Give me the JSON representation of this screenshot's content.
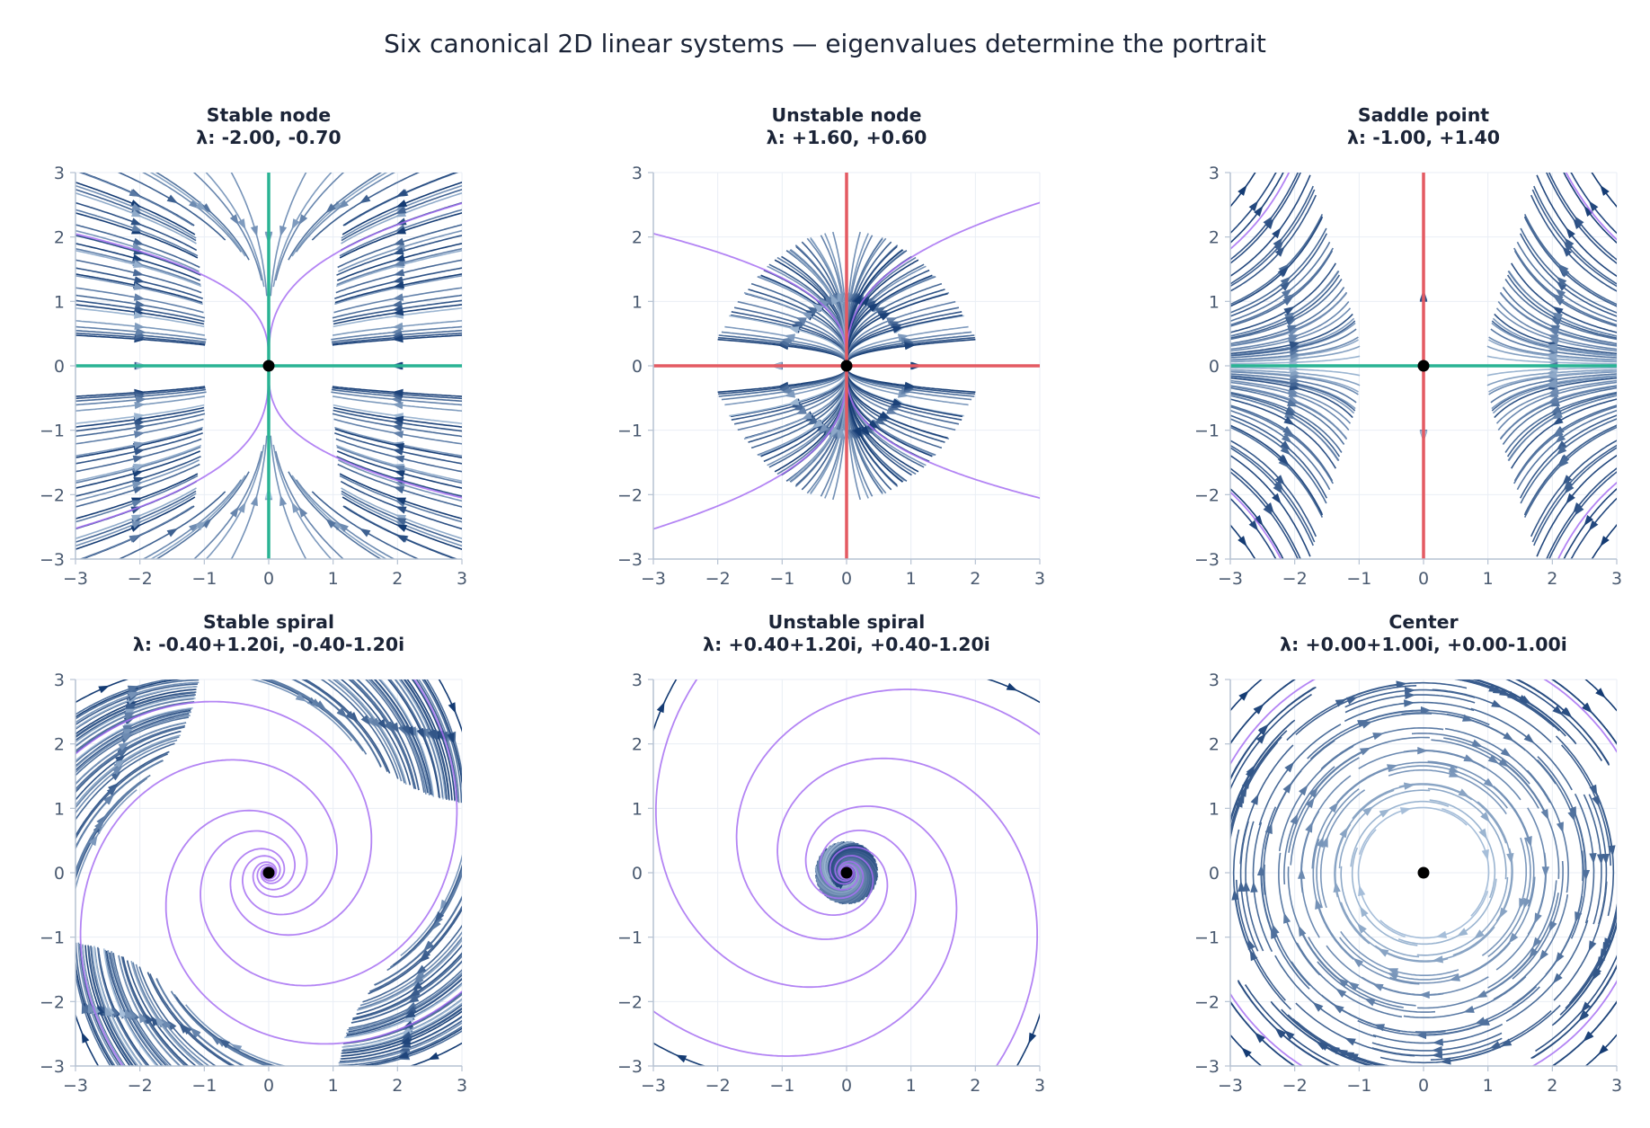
{
  "figure": {
    "title": "Six canonical 2D linear systems — eigenvalues determine the portrait"
  },
  "colors": {
    "stream_light": "#c6dbef",
    "stream_dark": "#08306b",
    "stable_eigenvector": "#2ab394",
    "unstable_eigenvector": "#e45a62",
    "trajectory": "#a66ff2",
    "equilibrium": "#000000",
    "grid": "#e9eef5",
    "axis": "#b6c2d2"
  },
  "chart_data": [
    {
      "type": "streamplot",
      "title": "Stable node",
      "subtitle": "λ: -2.00, -0.70",
      "matrix": [
        [
          -2.0,
          0
        ],
        [
          0,
          -0.7
        ]
      ],
      "eigenvalues": [
        "-2.00",
        "-0.70"
      ],
      "eigenvectors": [
        {
          "direction": [
            1,
            0
          ],
          "kind": "stable"
        },
        {
          "direction": [
            0,
            1
          ],
          "kind": "stable"
        }
      ],
      "xlim": [
        -3,
        3
      ],
      "ylim": [
        -3,
        3
      ],
      "xticks": [
        "−3",
        "−2",
        "−1",
        "0",
        "1",
        "2",
        "3"
      ],
      "yticks": [
        "−3",
        "−2",
        "−1",
        "0",
        "1",
        "2",
        "3"
      ],
      "equilibrium": [
        0,
        0
      ]
    },
    {
      "type": "streamplot",
      "title": "Unstable node",
      "subtitle": "λ: +1.60, +0.60",
      "matrix": [
        [
          1.6,
          0
        ],
        [
          0,
          0.6
        ]
      ],
      "eigenvalues": [
        "+1.60",
        "+0.60"
      ],
      "eigenvectors": [
        {
          "direction": [
            1,
            0
          ],
          "kind": "unstable"
        },
        {
          "direction": [
            0,
            1
          ],
          "kind": "unstable"
        }
      ],
      "xlim": [
        -3,
        3
      ],
      "ylim": [
        -3,
        3
      ],
      "xticks": [
        "−3",
        "−2",
        "−1",
        "0",
        "1",
        "2",
        "3"
      ],
      "yticks": [
        "−3",
        "−2",
        "−1",
        "0",
        "1",
        "2",
        "3"
      ],
      "equilibrium": [
        0,
        0
      ]
    },
    {
      "type": "streamplot",
      "title": "Saddle point",
      "subtitle": "λ: -1.00, +1.40",
      "matrix": [
        [
          -1.0,
          0
        ],
        [
          0,
          1.4
        ]
      ],
      "eigenvalues": [
        "-1.00",
        "+1.40"
      ],
      "eigenvectors": [
        {
          "direction": [
            1,
            0
          ],
          "kind": "stable"
        },
        {
          "direction": [
            0,
            1
          ],
          "kind": "unstable"
        }
      ],
      "xlim": [
        -3,
        3
      ],
      "ylim": [
        -3,
        3
      ],
      "xticks": [
        "−3",
        "−2",
        "−1",
        "0",
        "1",
        "2",
        "3"
      ],
      "yticks": [
        "−3",
        "−2",
        "−1",
        "0",
        "1",
        "2",
        "3"
      ],
      "equilibrium": [
        0,
        0
      ]
    },
    {
      "type": "streamplot",
      "title": "Stable spiral",
      "subtitle": "λ: -0.40+1.20i, -0.40-1.20i",
      "matrix": [
        [
          -0.4,
          1.2
        ],
        [
          -1.2,
          -0.4
        ]
      ],
      "eigenvalues": [
        "-0.40+1.20i",
        "-0.40-1.20i"
      ],
      "eigenvectors": [],
      "xlim": [
        -3,
        3
      ],
      "ylim": [
        -3,
        3
      ],
      "xticks": [
        "−3",
        "−2",
        "−1",
        "0",
        "1",
        "2",
        "3"
      ],
      "yticks": [
        "−3",
        "−2",
        "−1",
        "0",
        "1",
        "2",
        "3"
      ],
      "equilibrium": [
        0,
        0
      ]
    },
    {
      "type": "streamplot",
      "title": "Unstable spiral",
      "subtitle": "λ: +0.40+1.20i, +0.40-1.20i",
      "matrix": [
        [
          0.4,
          1.2
        ],
        [
          -1.2,
          0.4
        ]
      ],
      "eigenvalues": [
        "+0.40+1.20i",
        "+0.40-1.20i"
      ],
      "eigenvectors": [],
      "xlim": [
        -3,
        3
      ],
      "ylim": [
        -3,
        3
      ],
      "xticks": [
        "−3",
        "−2",
        "−1",
        "0",
        "1",
        "2",
        "3"
      ],
      "yticks": [
        "−3",
        "−2",
        "−1",
        "0",
        "1",
        "2",
        "3"
      ],
      "equilibrium": [
        0,
        0
      ]
    },
    {
      "type": "streamplot",
      "title": "Center",
      "subtitle": "λ: +0.00+1.00i, +0.00-1.00i",
      "matrix": [
        [
          0,
          1.0
        ],
        [
          -1.0,
          0
        ]
      ],
      "eigenvalues": [
        "+0.00+1.00i",
        "+0.00-1.00i"
      ],
      "eigenvectors": [],
      "xlim": [
        -3,
        3
      ],
      "ylim": [
        -3,
        3
      ],
      "xticks": [
        "−3",
        "−2",
        "−1",
        "0",
        "1",
        "2",
        "3"
      ],
      "yticks": [
        "−3",
        "−2",
        "−1",
        "0",
        "1",
        "2",
        "3"
      ],
      "equilibrium": [
        0,
        0
      ]
    }
  ]
}
